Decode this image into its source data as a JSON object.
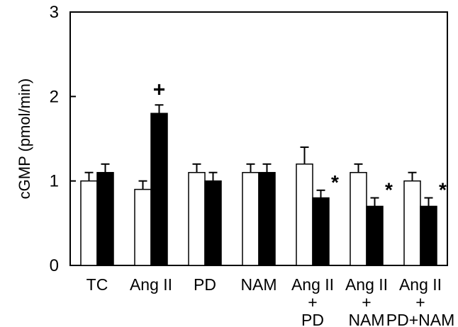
{
  "chart_data": {
    "type": "bar",
    "title": "",
    "xlabel": "",
    "ylabel": "cGMP (pmol/min)",
    "ylim": [
      0,
      3
    ],
    "yticks": [
      0,
      1,
      2,
      3
    ],
    "grid": false,
    "categories": [
      {
        "line1": "TC",
        "line2": "",
        "line3": ""
      },
      {
        "line1": "Ang II",
        "line2": "",
        "line3": ""
      },
      {
        "line1": "PD",
        "line2": "",
        "line3": ""
      },
      {
        "line1": "NAM",
        "line2": "",
        "line3": ""
      },
      {
        "line1": "Ang II",
        "line2": "+",
        "line3": "PD"
      },
      {
        "line1": "Ang II",
        "line2": "+",
        "line3": "NAM"
      },
      {
        "line1": "Ang II",
        "line2": "+",
        "line3": "PD+NAM"
      }
    ],
    "series": [
      {
        "fill": "#ffffff",
        "values": [
          1.0,
          0.9,
          1.1,
          1.1,
          1.2,
          1.1,
          1.0
        ],
        "errors": [
          0.1,
          0.1,
          0.1,
          0.1,
          0.2,
          0.1,
          0.1
        ],
        "markers": [
          "",
          "",
          "",
          "",
          "",
          "",
          ""
        ]
      },
      {
        "fill": "#000000",
        "values": [
          1.1,
          1.8,
          1.0,
          1.1,
          0.8,
          0.7,
          0.7
        ],
        "errors": [
          0.1,
          0.1,
          0.1,
          0.1,
          0.09,
          0.1,
          0.1
        ],
        "markers": [
          "",
          "+",
          "",
          "",
          "*",
          "*",
          "*"
        ]
      }
    ]
  }
}
